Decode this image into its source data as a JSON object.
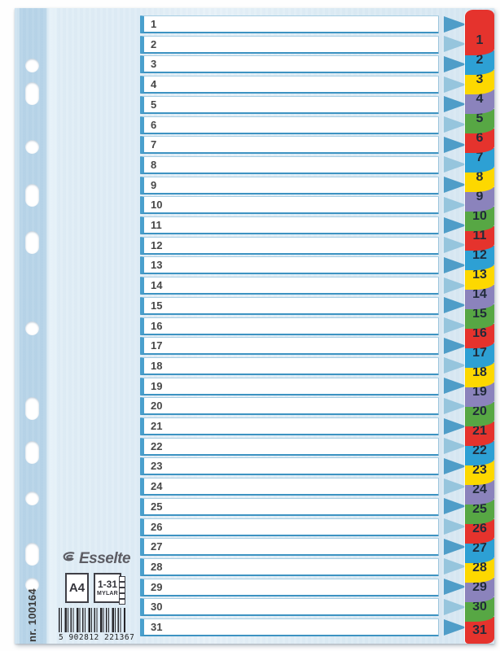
{
  "product": {
    "brand": "Esselte",
    "format_label": "A4",
    "range_label": "1-31",
    "material_label": "MYLAR",
    "product_number": "nr. 100164",
    "barcode_digits": "5 902812 221367"
  },
  "colors": {
    "tab_red": "#e5332d",
    "tab_blue": "#2da0d4",
    "tab_yellow": "#fdd800",
    "tab_purple": "#8b83bc",
    "tab_green": "#57a744",
    "tab_text": "#212b3a",
    "arrow_dark": "#4f9dc8",
    "arrow_light": "#96c5dd",
    "sheet_blue": "#dfecf5",
    "band_blue": "#b7d4e8"
  },
  "rows": [
    "1",
    "2",
    "3",
    "4",
    "5",
    "6",
    "7",
    "8",
    "9",
    "10",
    "11",
    "12",
    "13",
    "14",
    "15",
    "16",
    "17",
    "18",
    "19",
    "20",
    "21",
    "22",
    "23",
    "24",
    "25",
    "26",
    "27",
    "28",
    "29",
    "30",
    "31"
  ],
  "tabs": [
    {
      "label": "1",
      "color": "#e5332d"
    },
    {
      "label": "2",
      "color": "#2da0d4"
    },
    {
      "label": "3",
      "color": "#fdd800"
    },
    {
      "label": "4",
      "color": "#8b83bc"
    },
    {
      "label": "5",
      "color": "#57a744"
    },
    {
      "label": "6",
      "color": "#e5332d"
    },
    {
      "label": "7",
      "color": "#2da0d4"
    },
    {
      "label": "8",
      "color": "#fdd800"
    },
    {
      "label": "9",
      "color": "#8b83bc"
    },
    {
      "label": "10",
      "color": "#57a744"
    },
    {
      "label": "11",
      "color": "#e5332d"
    },
    {
      "label": "12",
      "color": "#2da0d4"
    },
    {
      "label": "13",
      "color": "#fdd800"
    },
    {
      "label": "14",
      "color": "#8b83bc"
    },
    {
      "label": "15",
      "color": "#57a744"
    },
    {
      "label": "16",
      "color": "#e5332d"
    },
    {
      "label": "17",
      "color": "#2da0d4"
    },
    {
      "label": "18",
      "color": "#fdd800"
    },
    {
      "label": "19",
      "color": "#8b83bc"
    },
    {
      "label": "20",
      "color": "#57a744"
    },
    {
      "label": "21",
      "color": "#e5332d"
    },
    {
      "label": "22",
      "color": "#2da0d4"
    },
    {
      "label": "23",
      "color": "#fdd800"
    },
    {
      "label": "24",
      "color": "#8b83bc"
    },
    {
      "label": "25",
      "color": "#57a744"
    },
    {
      "label": "26",
      "color": "#e5332d"
    },
    {
      "label": "27",
      "color": "#2da0d4"
    },
    {
      "label": "28",
      "color": "#fdd800"
    },
    {
      "label": "29",
      "color": "#8b83bc"
    },
    {
      "label": "30",
      "color": "#57a744"
    },
    {
      "label": "31",
      "color": "#e5332d"
    }
  ]
}
